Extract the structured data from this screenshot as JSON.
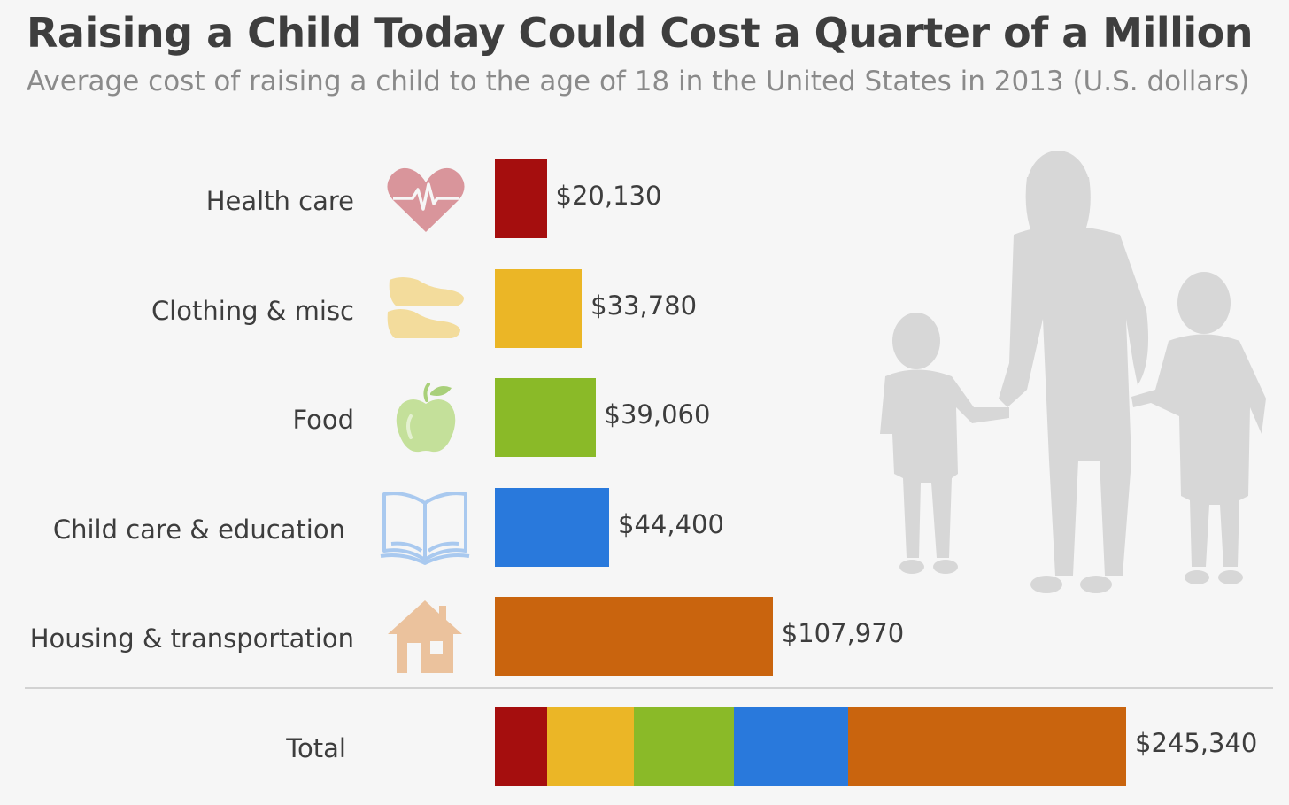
{
  "chart_data": {
    "type": "bar",
    "orientation": "horizontal",
    "title": "Raising a Child Today Could Cost a Quarter of a Million",
    "subtitle": "Average cost of raising a child to the age of 18 in the United States in 2013 (U.S. dollars)",
    "categories": [
      "Health care",
      "Clothing & misc",
      "Food",
      "Child care & education",
      "Housing & transportation"
    ],
    "values": [
      20130,
      33780,
      39060,
      44400,
      107970
    ],
    "value_labels": [
      "$20,130",
      "$33,780",
      "$39,060",
      "$44,400",
      "$107,970"
    ],
    "colors": [
      "#a50e0e",
      "#ebb626",
      "#8aba28",
      "#2979dc",
      "#c9640e"
    ],
    "icons": [
      "heartbeat-icon",
      "sneakers-icon",
      "apple-icon",
      "open-book-icon",
      "house-icon"
    ],
    "icon_colors": [
      "#d9959b",
      "#f3dc9c",
      "#c4e09a",
      "#a9c9ef",
      "#ebc29d"
    ],
    "total": {
      "label": "Total",
      "value": 245340,
      "value_label": "$245,340"
    },
    "grid": false,
    "legend": "none"
  }
}
